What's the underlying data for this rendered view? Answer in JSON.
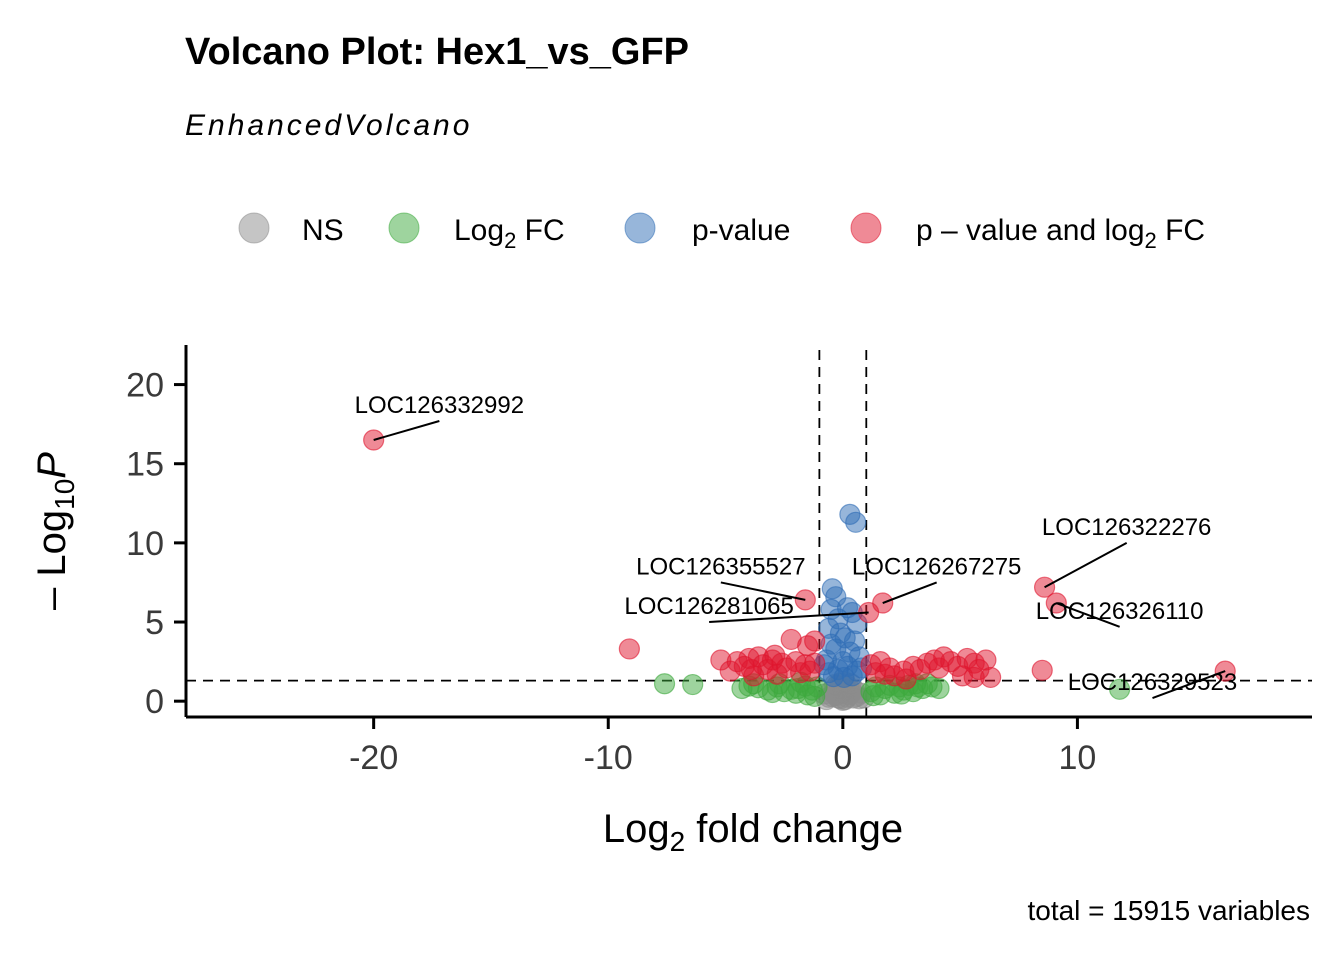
{
  "chart_data": {
    "type": "scatter",
    "title": "Volcano Plot: Hex1_vs_GFP",
    "subtitle": "EnhancedVolcano",
    "caption": "total = 15915 variables",
    "xlabel": {
      "main": "Log",
      "sub": "2",
      "rest": " fold change"
    },
    "ylabel": {
      "minus": "– Log",
      "sub": "10",
      "italic": "P"
    },
    "xlim": [
      -28,
      20
    ],
    "ylim": [
      -1,
      22.5
    ],
    "xticks": [
      -20,
      -10,
      0,
      10
    ],
    "xtick_labels": [
      "-20",
      "-10",
      "0",
      "10"
    ],
    "yticks": [
      0,
      5,
      10,
      15,
      20
    ],
    "ytick_labels": [
      "0",
      "5",
      "10",
      "15",
      "20"
    ],
    "cutoffs": {
      "fc": 1,
      "p_line_y": 1.3
    },
    "legend": [
      {
        "key": "ns",
        "main": "NS",
        "sub": "",
        "rest": ""
      },
      {
        "key": "fc",
        "main": "Log",
        "sub": "2",
        "rest": " FC"
      },
      {
        "key": "pv",
        "main": "p-value",
        "sub": "",
        "rest": ""
      },
      {
        "key": "both",
        "main": "p – value and log",
        "sub": "2",
        "rest": " FC"
      }
    ],
    "colors": {
      "ns": "#8c8c8c",
      "fc": "#3da93d",
      "pv": "#2f6db5",
      "both": "#e0152e",
      "axis": "#000000"
    },
    "series": [
      {
        "key": "ns",
        "name": "NS",
        "points": [
          [
            0,
            0.05
          ],
          [
            0.1,
            0.1
          ],
          [
            -0.1,
            0.15
          ],
          [
            0.2,
            0.25
          ],
          [
            -0.2,
            0.2
          ],
          [
            0.3,
            0.4
          ],
          [
            -0.3,
            0.35
          ],
          [
            0.05,
            0.5
          ],
          [
            -0.05,
            0.55
          ],
          [
            0.4,
            0.6
          ],
          [
            -0.4,
            0.5
          ],
          [
            0.15,
            0.75
          ],
          [
            -0.15,
            0.8
          ],
          [
            0.5,
            0.7
          ],
          [
            -0.5,
            0.65
          ],
          [
            0.25,
            0.9
          ],
          [
            -0.25,
            1.0
          ],
          [
            0.6,
            0.3
          ],
          [
            -0.6,
            0.25
          ],
          [
            0.7,
            0.15
          ],
          [
            -0.7,
            0.1
          ],
          [
            0.35,
            1.1
          ],
          [
            -0.35,
            1.05
          ],
          [
            0.8,
            0.5
          ],
          [
            -0.8,
            0.45
          ],
          [
            0.1,
            1.2
          ],
          [
            -0.1,
            1.15
          ],
          [
            0.45,
            0.2
          ],
          [
            -0.45,
            0.3
          ],
          [
            0.9,
            0.2
          ]
        ]
      },
      {
        "key": "fc",
        "name": "Log2 FC",
        "points": [
          [
            -7.6,
            1.1
          ],
          [
            -6.4,
            1.05
          ],
          [
            -4.3,
            0.8
          ],
          [
            -3.6,
            0.85
          ],
          [
            -3.2,
            0.7
          ],
          [
            -2.8,
            0.9
          ],
          [
            -2.5,
            0.6
          ],
          [
            -2.2,
            0.75
          ],
          [
            -1.9,
            0.8
          ],
          [
            -1.6,
            0.95
          ],
          [
            -1.3,
            0.7
          ],
          [
            -1.1,
            0.9
          ],
          [
            -2.0,
            0.5
          ],
          [
            -3.0,
            0.55
          ],
          [
            -1.5,
            0.4
          ],
          [
            -1.2,
            0.3
          ],
          [
            -3.8,
            1.1
          ],
          [
            -4.0,
            0.95
          ],
          [
            -2.7,
            1.1
          ],
          [
            -1.8,
            1.2
          ],
          [
            1.2,
            0.6
          ],
          [
            1.4,
            0.9
          ],
          [
            1.6,
            0.4
          ],
          [
            1.8,
            0.8
          ],
          [
            2.0,
            1.0
          ],
          [
            2.2,
            0.5
          ],
          [
            2.4,
            0.9
          ],
          [
            2.6,
            0.7
          ],
          [
            2.8,
            1.0
          ],
          [
            3.0,
            0.6
          ],
          [
            3.2,
            0.9
          ],
          [
            3.4,
            0.8
          ],
          [
            3.6,
            1.1
          ],
          [
            3.8,
            0.9
          ],
          [
            4.1,
            0.8
          ],
          [
            3.1,
            1.1
          ],
          [
            2.5,
            0.45
          ],
          [
            1.3,
            0.35
          ],
          [
            11.8,
            0.75
          ]
        ]
      },
      {
        "key": "pv",
        "name": "p-value",
        "points": [
          [
            0.3,
            11.8
          ],
          [
            0.55,
            11.3
          ],
          [
            -0.45,
            7.1
          ],
          [
            -0.3,
            6.6
          ],
          [
            -0.5,
            5.8
          ],
          [
            0.2,
            5.9
          ],
          [
            0.4,
            5.6
          ],
          [
            -0.2,
            5.2
          ],
          [
            0.6,
            4.9
          ],
          [
            -0.6,
            4.6
          ],
          [
            -0.1,
            4.3
          ],
          [
            0.1,
            4.0
          ],
          [
            0.5,
            3.8
          ],
          [
            -0.5,
            3.6
          ],
          [
            -0.3,
            3.3
          ],
          [
            0.3,
            3.1
          ],
          [
            0.7,
            2.8
          ],
          [
            -0.7,
            2.6
          ],
          [
            0,
            2.5
          ],
          [
            0.2,
            2.2
          ],
          [
            -0.2,
            2.0
          ],
          [
            0.6,
            1.9
          ],
          [
            -0.6,
            1.8
          ],
          [
            0.4,
            1.6
          ],
          [
            -0.4,
            1.55
          ],
          [
            0.8,
            2.1
          ],
          [
            -0.8,
            2.3
          ],
          [
            0.05,
            1.5
          ]
        ]
      },
      {
        "key": "both",
        "name": "p – value and log2 FC",
        "points": [
          [
            -20,
            16.5
          ],
          [
            -9.1,
            3.3
          ],
          [
            -1.6,
            6.4
          ],
          [
            1.7,
            6.2
          ],
          [
            1.1,
            5.6
          ],
          [
            8.6,
            7.2
          ],
          [
            9.1,
            6.2
          ],
          [
            -2.2,
            3.9
          ],
          [
            -1.5,
            3.5
          ],
          [
            -1.2,
            3.8
          ],
          [
            16.3,
            1.9
          ],
          [
            8.5,
            1.95
          ],
          [
            -5.2,
            2.6
          ],
          [
            -4.8,
            1.9
          ],
          [
            -4.5,
            2.5
          ],
          [
            -4.2,
            2.2
          ],
          [
            -4.0,
            2.7
          ],
          [
            -3.8,
            1.6
          ],
          [
            -3.6,
            2.8
          ],
          [
            -3.4,
            2.3
          ],
          [
            -3.2,
            2.0
          ],
          [
            -3.0,
            2.6
          ],
          [
            -2.8,
            1.7
          ],
          [
            -2.6,
            2.4
          ],
          [
            -2.4,
            2.1
          ],
          [
            -2.0,
            2.5
          ],
          [
            -1.8,
            1.8
          ],
          [
            -1.6,
            2.3
          ],
          [
            -1.4,
            1.9
          ],
          [
            -1.2,
            2.4
          ],
          [
            -2.9,
            2.9
          ],
          [
            -3.9,
            2.0
          ],
          [
            1.2,
            2.3
          ],
          [
            1.4,
            1.8
          ],
          [
            1.6,
            2.5
          ],
          [
            1.8,
            1.7
          ],
          [
            2.0,
            2.1
          ],
          [
            2.2,
            1.6
          ],
          [
            2.6,
            1.9
          ],
          [
            3.0,
            2.2
          ],
          [
            3.3,
            2.0
          ],
          [
            3.6,
            2.4
          ],
          [
            3.9,
            2.6
          ],
          [
            4.1,
            2.1
          ],
          [
            4.3,
            2.8
          ],
          [
            4.6,
            2.5
          ],
          [
            4.9,
            2.2
          ],
          [
            5.1,
            1.6
          ],
          [
            5.3,
            2.7
          ],
          [
            5.6,
            2.4
          ],
          [
            5.8,
            2.0
          ],
          [
            6.1,
            2.6
          ],
          [
            6.3,
            1.5
          ],
          [
            5.6,
            1.5
          ],
          [
            2.7,
            1.4
          ]
        ]
      }
    ],
    "point_labels": [
      {
        "text": "LOC126332992",
        "px": -20,
        "py": 16.5,
        "lx": -17.2,
        "ly": 17.7
      },
      {
        "text": "LOC126355527",
        "px": -1.6,
        "py": 6.4,
        "lx": -5.2,
        "ly": 7.5
      },
      {
        "text": "LOC126281065",
        "px": 1.1,
        "py": 5.6,
        "lx": -5.7,
        "ly": 5.0
      },
      {
        "text": "LOC126267275",
        "px": 1.7,
        "py": 6.2,
        "lx": 4.0,
        "ly": 7.5
      },
      {
        "text": "LOC126322276",
        "px": 8.6,
        "py": 7.2,
        "lx": 12.1,
        "ly": 10.0
      },
      {
        "text": "LOC126326110",
        "px": 9.1,
        "py": 6.2,
        "lx": 11.8,
        "ly": 4.7
      },
      {
        "text": "LOC126329523",
        "px": 16.3,
        "py": 1.9,
        "lx": 13.2,
        "ly": 0.2
      }
    ]
  }
}
